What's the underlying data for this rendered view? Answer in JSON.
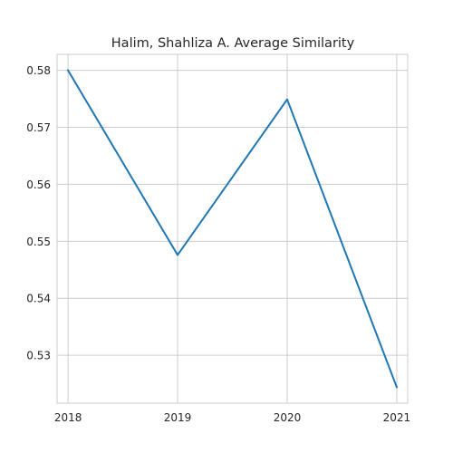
{
  "chart_data": {
    "type": "line",
    "title": "Halim, Shahliza A. Average Similarity",
    "xlabel": "",
    "ylabel": "",
    "x": [
      2018,
      2019,
      2020,
      2021
    ],
    "categories": [
      "2018",
      "2019",
      "2020",
      "2021"
    ],
    "series": [
      {
        "values": [
          0.58,
          0.5476,
          0.5749,
          0.5244
        ]
      }
    ],
    "xlim": [
      2017.9,
      2021.1
    ],
    "ylim": [
      0.5216,
      0.5828
    ],
    "yticks": [
      0.53,
      0.54,
      0.55,
      0.56,
      0.57,
      0.58
    ],
    "ytick_labels": [
      "0.53",
      "0.54",
      "0.55",
      "0.56",
      "0.57",
      "0.58"
    ],
    "grid": true,
    "legend": "none",
    "line_color": "#1f77b4"
  }
}
